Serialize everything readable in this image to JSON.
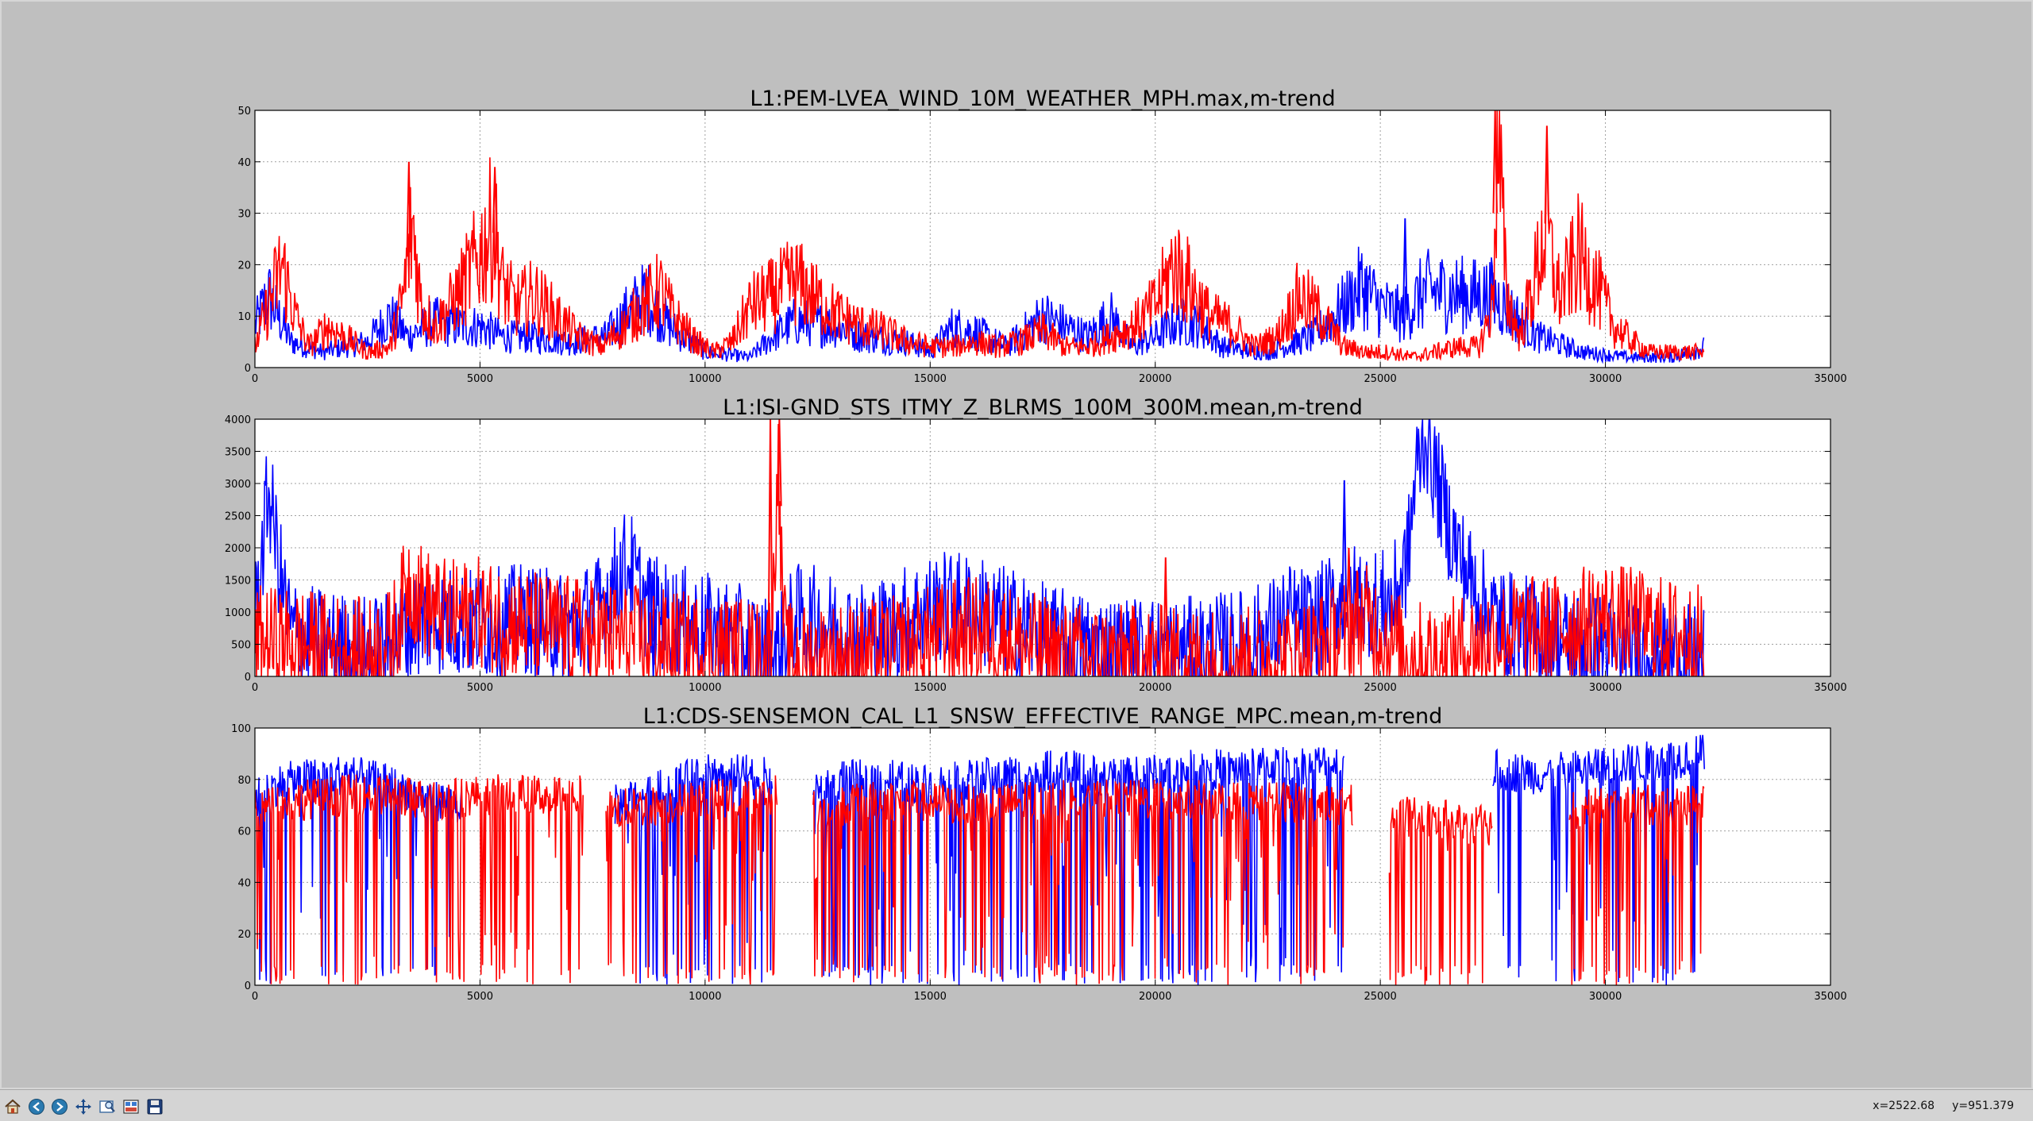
{
  "toolbar": {
    "buttons": [
      {
        "name": "home-icon"
      },
      {
        "name": "back-arrow-icon"
      },
      {
        "name": "forward-arrow-icon"
      },
      {
        "name": "pan-move-icon"
      },
      {
        "name": "zoom-rect-icon"
      },
      {
        "name": "subplots-config-icon"
      },
      {
        "name": "save-floppy-icon"
      }
    ],
    "coords_x": "x=2522.68",
    "coords_y": "y=951.379"
  },
  "colors": {
    "background": "#bfbfbf",
    "blue": "#0000ff",
    "red": "#ff0000"
  },
  "chart_data": [
    {
      "type": "line",
      "title": "L1:PEM-LVEA_WIND_10M_WEATHER_MPH.max,m-trend",
      "xlabel": "",
      "ylabel": "",
      "xlim": [
        0,
        35000
      ],
      "ylim": [
        0,
        50
      ],
      "xticks": [
        0,
        5000,
        10000,
        15000,
        20000,
        25000,
        30000,
        35000
      ],
      "yticks": [
        0,
        10,
        20,
        30,
        40,
        50
      ],
      "grid": true,
      "noise": 0.55,
      "series": [
        {
          "color": "#0000ff",
          "x": [
            0,
            300,
            800,
            1500,
            2500,
            3000,
            3400,
            4000,
            4500,
            5000,
            5500,
            6000,
            7000,
            7800,
            8300,
            8700,
            9200,
            10000,
            11000,
            11500,
            12000,
            13000,
            13500,
            14500,
            15000,
            15500,
            16000,
            16700,
            17500,
            18500,
            19000,
            19500,
            20000,
            20500,
            21000,
            21500,
            22500,
            23500,
            24200,
            24600,
            25000,
            25500,
            26000,
            27000,
            27500,
            28500,
            29500,
            30500,
            31500,
            32200
          ],
          "y": [
            8,
            14,
            5,
            3,
            5,
            10,
            6,
            9,
            8,
            8,
            6,
            6,
            5,
            6,
            11,
            14,
            8,
            3,
            2,
            6,
            9,
            8,
            6,
            5,
            3,
            8,
            7,
            4,
            10,
            6,
            10,
            4,
            6,
            9,
            8,
            4,
            3,
            6,
            12,
            16,
            12,
            10,
            15,
            14,
            14,
            6,
            3,
            2,
            2,
            4
          ]
        },
        {
          "color": "#ff0000",
          "x": [
            0,
            300,
            600,
            900,
            1200,
            1600,
            2000,
            2500,
            3000,
            3300,
            3500,
            3700,
            4000,
            4500,
            5000,
            5300,
            5500,
            5800,
            6200,
            6700,
            7200,
            7700,
            8200,
            8600,
            9000,
            9300,
            9800,
            10200,
            10600,
            11000,
            11500,
            12000,
            12500,
            13000,
            13500,
            14000,
            14500,
            15000,
            15500,
            16000,
            16500,
            17000,
            17500,
            18000,
            18500,
            19000,
            19500,
            20000,
            20400,
            20700,
            21200,
            21700,
            22200,
            22700,
            23200,
            23700,
            24200,
            24700,
            25200,
            25700,
            26200,
            26700,
            27200,
            27500,
            27600,
            27800,
            28100,
            28400,
            28700,
            28850,
            29000,
            29400,
            29800,
            30200,
            30600,
            31000,
            31500,
            32200
          ],
          "y": [
            4,
            12,
            20,
            10,
            4,
            8,
            6,
            3,
            4,
            14,
            28,
            12,
            8,
            14,
            22,
            28,
            16,
            12,
            14,
            10,
            6,
            4,
            8,
            12,
            15,
            10,
            5,
            3,
            5,
            12,
            14,
            17,
            13,
            10,
            8,
            7,
            5,
            4,
            4,
            5,
            4,
            5,
            7,
            4,
            4,
            6,
            8,
            12,
            20,
            17,
            10,
            8,
            4,
            6,
            14,
            10,
            4,
            3,
            3,
            2,
            3,
            4,
            4,
            12,
            48,
            14,
            6,
            16,
            28,
            18,
            14,
            22,
            16,
            8,
            5,
            3,
            3,
            3
          ]
        }
      ],
      "spikes": [
        {
          "series": 1,
          "x": 27550,
          "y": 50
        },
        {
          "series": 1,
          "x": 28700,
          "y": 47
        },
        {
          "series": 1,
          "x": 3420,
          "y": 40
        },
        {
          "series": 1,
          "x": 5330,
          "y": 39
        },
        {
          "series": 0,
          "x": 25550,
          "y": 29
        }
      ]
    },
    {
      "type": "line",
      "title": "L1:ISI-GND_STS_ITMY_Z_BLRMS_100M_300M.mean,m-trend",
      "xlabel": "",
      "ylabel": "",
      "xlim": [
        0,
        35000
      ],
      "ylim": [
        0,
        4000
      ],
      "xticks": [
        0,
        5000,
        10000,
        15000,
        20000,
        25000,
        30000,
        35000
      ],
      "yticks": [
        0,
        500,
        1000,
        1500,
        2000,
        2500,
        3000,
        3500,
        4000
      ],
      "grid": true,
      "noise": 0.22,
      "series": [
        {
          "color": "#0000ff",
          "x": [
            0,
            150,
            300,
            450,
            600,
            800,
            1100,
            1500,
            2000,
            2500,
            3000,
            3500,
            4000,
            4500,
            5000,
            6000,
            7000,
            7600,
            8000,
            8300,
            8600,
            9000,
            9500,
            10000,
            10500,
            11000,
            11400,
            11600,
            12000,
            12500,
            13000,
            13500,
            14000,
            14500,
            15000,
            15500,
            16000,
            16500,
            17000,
            17500,
            18000,
            18500,
            19000,
            19500,
            20000,
            20500,
            21000,
            21500,
            22000,
            22500,
            23000,
            23500,
            24000,
            24500,
            25000,
            25300,
            25600,
            25800,
            26000,
            26200,
            26500,
            26800,
            27000,
            27300,
            27600,
            28000,
            28500,
            29000,
            29500,
            30000,
            30500,
            31000,
            31500,
            32200
          ],
          "y": [
            900,
            1800,
            2900,
            2200,
            1400,
            700,
            600,
            500,
            450,
            400,
            450,
            800,
            900,
            850,
            800,
            900,
            750,
            1000,
            1500,
            1800,
            1200,
            950,
            850,
            750,
            650,
            500,
            400,
            350,
            900,
            850,
            700,
            650,
            700,
            900,
            1050,
            1100,
            1050,
            900,
            800,
            600,
            500,
            450,
            400,
            380,
            400,
            350,
            400,
            450,
            500,
            650,
            900,
            800,
            1100,
            1250,
            1100,
            1200,
            1800,
            3200,
            3800,
            3200,
            2400,
            1800,
            1500,
            1100,
            900,
            750,
            650,
            550,
            500,
            450,
            350,
            300,
            280,
            260
          ]
        },
        {
          "color": "#ff0000",
          "x": [
            0,
            500,
            1000,
            1500,
            2000,
            2500,
            3000,
            3200,
            3400,
            3600,
            4000,
            4500,
            5000,
            5500,
            6000,
            7000,
            8000,
            9000,
            10000,
            10500,
            11000,
            11400,
            11550,
            11600,
            11700,
            11800,
            12000,
            13000,
            14000,
            15000,
            15500,
            16000,
            16500,
            17000,
            18000,
            19000,
            20000,
            21000,
            22000,
            23000,
            24000,
            24500,
            24800,
            25200,
            25600,
            26000,
            26500,
            27000,
            27500,
            28000,
            28500,
            29000,
            29500,
            30000,
            30500,
            31000,
            31500,
            32200
          ],
          "y": [
            550,
            520,
            500,
            450,
            400,
            350,
            500,
            900,
            1500,
            1300,
            1000,
            950,
            1000,
            850,
            800,
            700,
            600,
            500,
            420,
            400,
            350,
            300,
            1500,
            3800,
            1500,
            300,
            250,
            300,
            350,
            550,
            650,
            700,
            650,
            500,
            300,
            250,
            250,
            220,
            220,
            280,
            550,
            900,
            850,
            550,
            350,
            300,
            350,
            450,
            600,
            700,
            700,
            750,
            850,
            950,
            850,
            750,
            650,
            550
          ]
        }
      ],
      "spikes": [
        {
          "series": 1,
          "x": 11450,
          "y": 4000
        },
        {
          "series": 1,
          "x": 11650,
          "y": 4000
        },
        {
          "series": 0,
          "x": 24200,
          "y": 3050
        },
        {
          "series": 1,
          "x": 24300,
          "y": 2000
        },
        {
          "series": 1,
          "x": 20230,
          "y": 1850
        },
        {
          "series": 0,
          "x": 1900,
          "y": 1000
        },
        {
          "series": 1,
          "x": 7450,
          "y": 0
        },
        {
          "series": 0,
          "x": 8850,
          "y": 0
        },
        {
          "series": 0,
          "x": 31000,
          "y": 0
        }
      ]
    },
    {
      "type": "line",
      "title": "L1:CDS-SENSEMON_CAL_L1_SNSW_EFFECTIVE_RANGE_MPC.mean,m-trend",
      "xlabel": "",
      "ylabel": "",
      "xlim": [
        0,
        35000
      ],
      "ylim": [
        0,
        100
      ],
      "xticks": [
        0,
        5000,
        10000,
        15000,
        20000,
        25000,
        30000,
        35000
      ],
      "yticks": [
        0,
        20,
        40,
        60,
        80,
        100
      ],
      "grid": true,
      "noise": 0.08,
      "dropouts": 0.18,
      "series": [
        {
          "color": "#0000ff",
          "segments": [
            [
              0,
              4600
            ],
            [
              8000,
              11500
            ],
            [
              12400,
              24200
            ],
            [
              27500,
              32200
            ]
          ],
          "x": [
            0,
            500,
            1000,
            2000,
            3000,
            4000,
            4600,
            8000,
            9000,
            10000,
            11000,
            11500,
            12400,
            13000,
            14000,
            15000,
            16000,
            17000,
            18000,
            19000,
            20000,
            21000,
            22000,
            23000,
            24200,
            27500,
            28500,
            29500,
            30500,
            31500,
            32200
          ],
          "y": [
            72,
            78,
            80,
            82,
            78,
            72,
            70,
            70,
            76,
            82,
            82,
            80,
            76,
            80,
            80,
            78,
            80,
            82,
            84,
            80,
            82,
            84,
            84,
            86,
            86,
            84,
            82,
            84,
            86,
            88,
            90
          ]
        },
        {
          "color": "#ff0000",
          "segments": [
            [
              0,
              7300
            ],
            [
              7800,
              11600
            ],
            [
              12400,
              24400
            ],
            [
              25200,
              27500
            ],
            [
              29200,
              32200
            ]
          ],
          "x": [
            0,
            1000,
            2000,
            3000,
            4000,
            5000,
            6000,
            7300,
            7800,
            9000,
            10000,
            11600,
            12400,
            14000,
            16000,
            18000,
            20000,
            22000,
            24400,
            25200,
            26500,
            27500,
            29200,
            30500,
            32200
          ],
          "y": [
            68,
            72,
            74,
            74,
            72,
            74,
            74,
            74,
            68,
            70,
            72,
            74,
            68,
            72,
            70,
            72,
            72,
            72,
            70,
            66,
            64,
            62,
            68,
            70,
            70
          ]
        }
      ],
      "spikes": []
    }
  ]
}
